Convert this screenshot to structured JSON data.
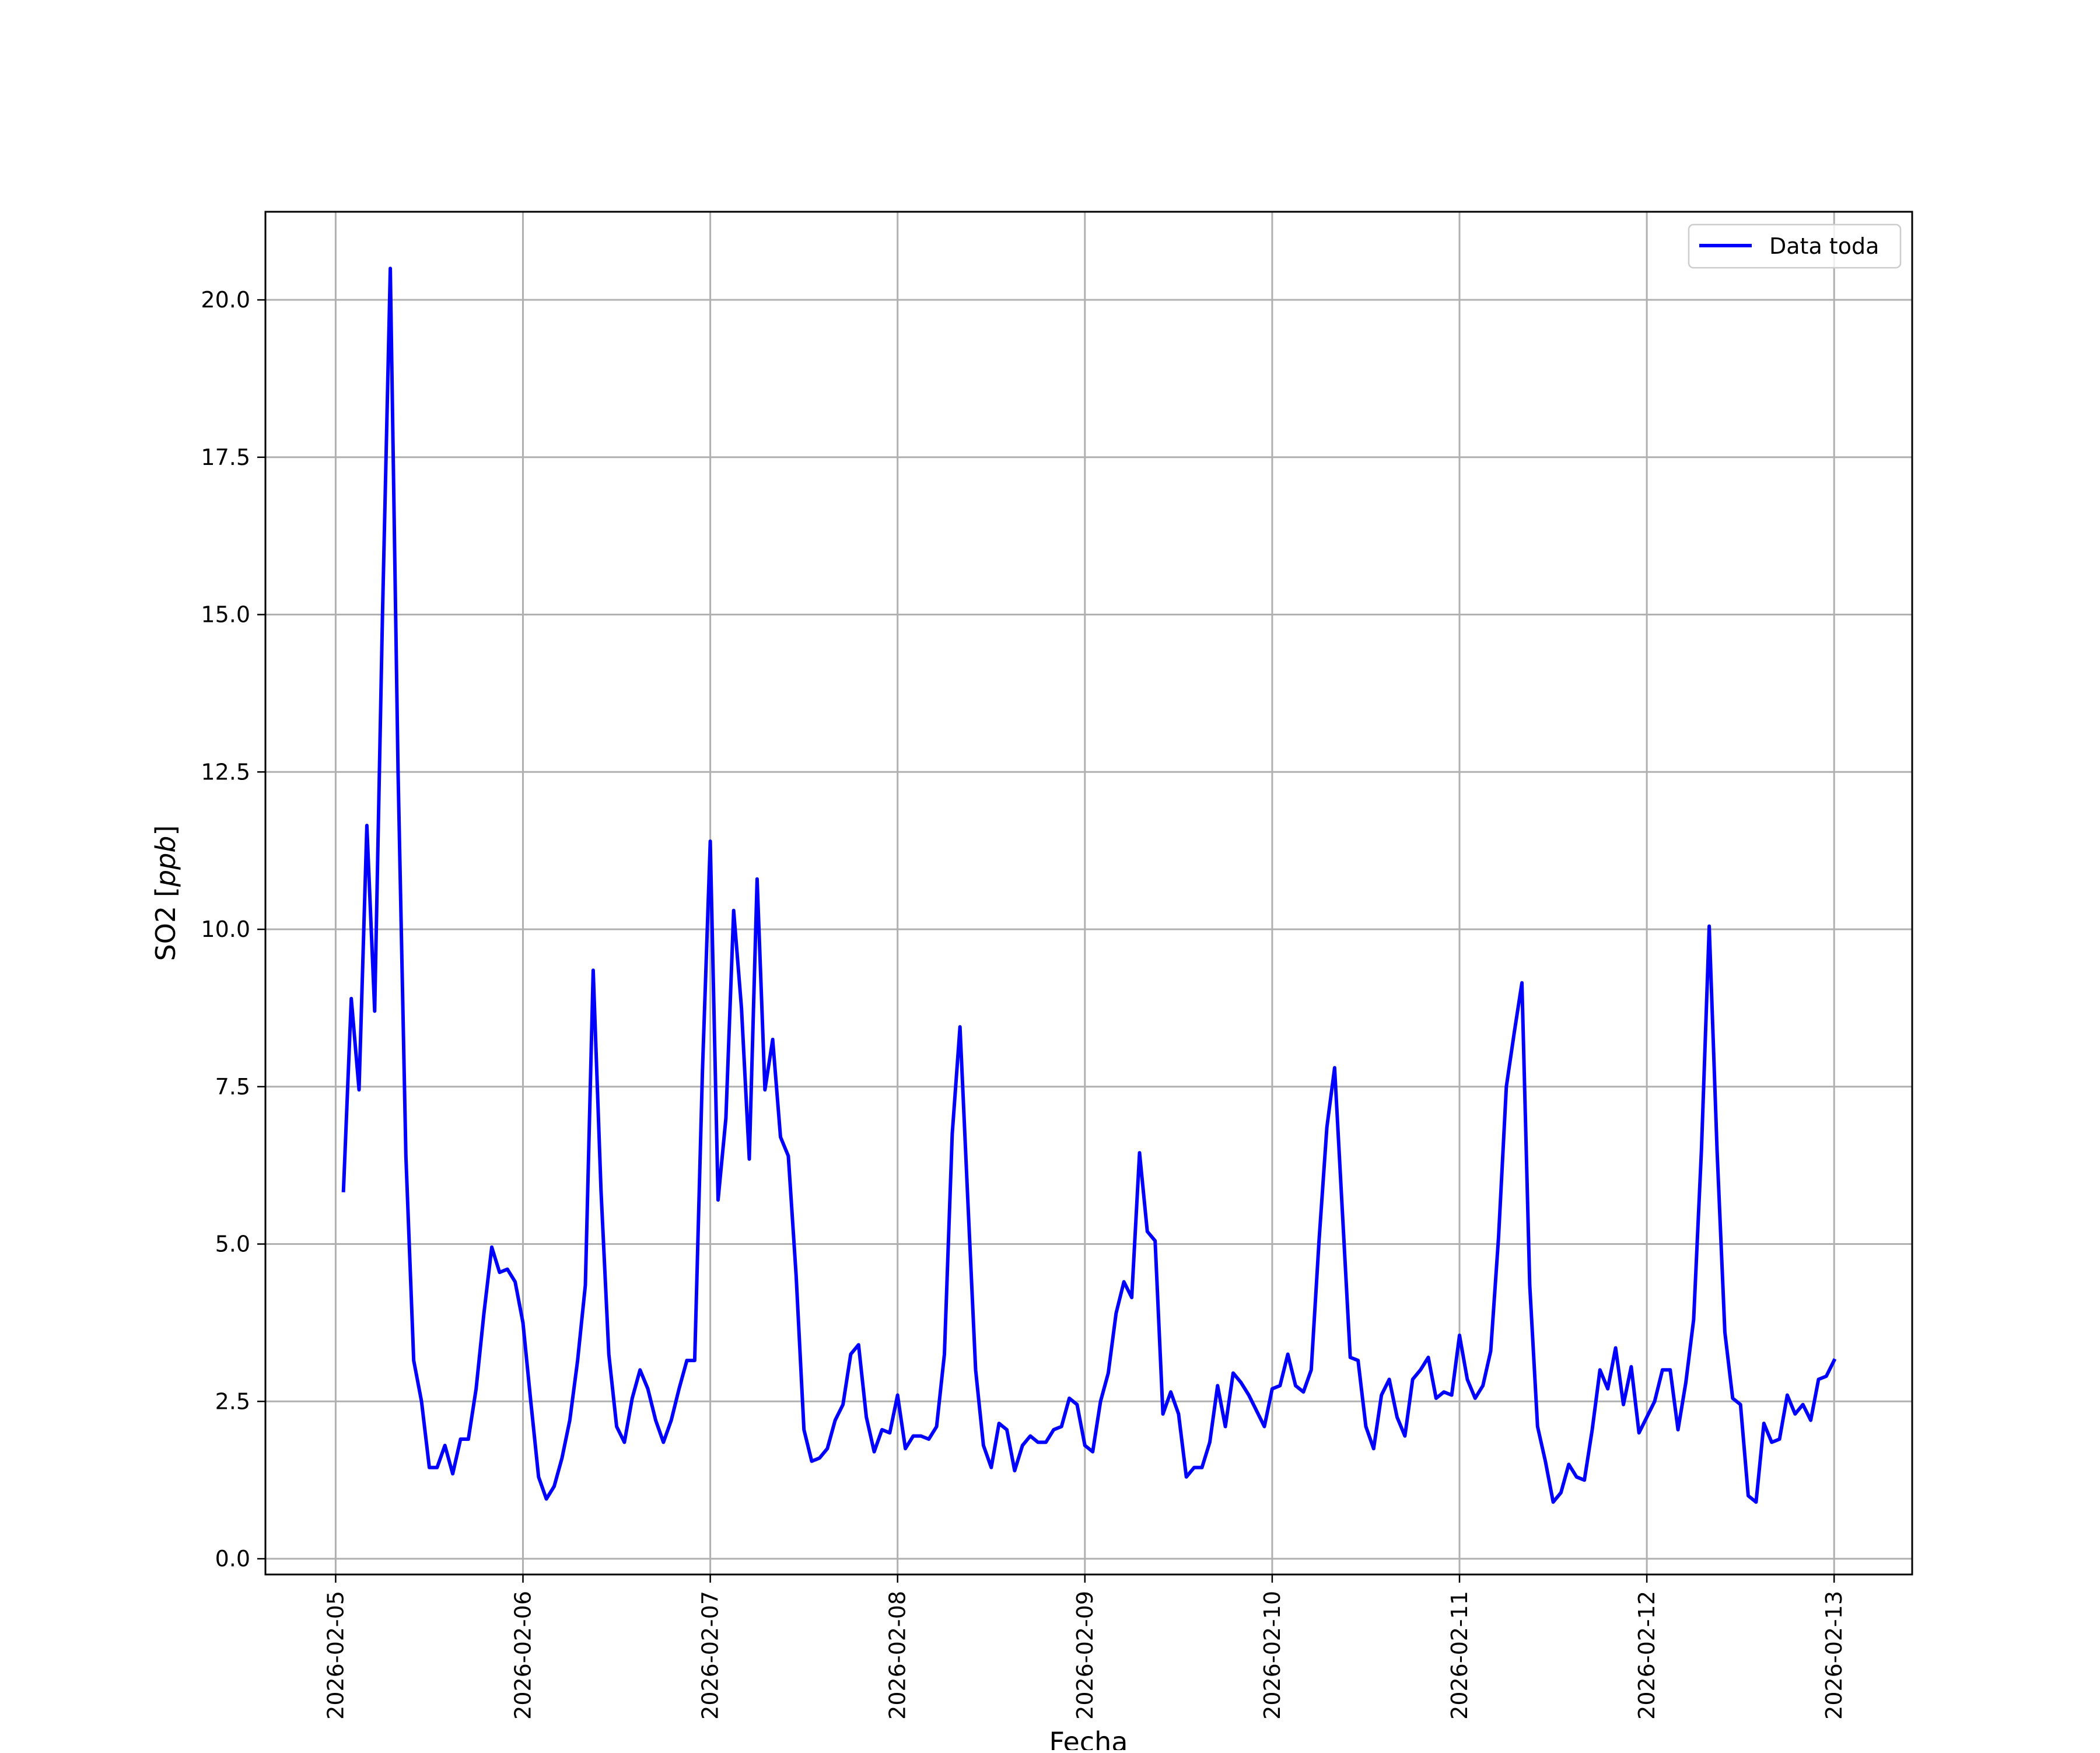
{
  "chart_data": {
    "type": "line",
    "title": "",
    "xlabel": "Fecha",
    "ylabel": "SO2 [ppb]",
    "ylabel_parts": {
      "plain": "SO2 ",
      "italic": "ppb"
    },
    "xlim": [
      "2026-02-04 15:00",
      "2026-02-13 10:00"
    ],
    "ylim": [
      -0.25,
      21.4
    ],
    "grid": true,
    "legend_position": "upper right",
    "x_tick_labels": [
      "2026-02-05",
      "2026-02-06",
      "2026-02-07",
      "2026-02-08",
      "2026-02-09",
      "2026-02-10",
      "2026-02-11",
      "2026-02-12",
      "2026-02-13"
    ],
    "y_tick_labels": [
      "0.0",
      "2.5",
      "5.0",
      "7.5",
      "10.0",
      "12.5",
      "15.0",
      "17.5",
      "20.0"
    ],
    "y_ticks": [
      0,
      2.5,
      5,
      7.5,
      10,
      12.5,
      15,
      17.5,
      20
    ],
    "x_start": "2026-02-05 01:00",
    "x_step_hours": 1,
    "series": [
      {
        "name": "Data toda",
        "color": "#0000ff",
        "values": [
          5.85,
          8.9,
          7.45,
          11.65,
          8.7,
          15.0,
          20.5,
          12.5,
          6.4,
          3.15,
          2.5,
          1.45,
          1.45,
          1.8,
          1.35,
          1.9,
          1.9,
          2.7,
          3.9,
          4.95,
          4.55,
          4.6,
          4.4,
          3.75,
          2.5,
          1.3,
          0.95,
          1.15,
          1.6,
          2.2,
          3.15,
          4.35,
          9.35,
          5.85,
          3.25,
          2.1,
          1.85,
          2.55,
          3.0,
          2.7,
          2.2,
          1.85,
          2.2,
          2.7,
          3.15,
          3.15,
          7.75,
          11.4,
          5.7,
          7.0,
          10.3,
          8.75,
          6.35,
          10.8,
          7.45,
          8.25,
          6.7,
          6.4,
          4.5,
          2.05,
          1.55,
          1.6,
          1.75,
          2.2,
          2.45,
          3.25,
          3.4,
          2.25,
          1.7,
          2.05,
          2.0,
          2.6,
          1.75,
          1.95,
          1.95,
          1.9,
          2.1,
          3.25,
          6.75,
          8.45,
          5.7,
          3.0,
          1.8,
          1.45,
          2.15,
          2.05,
          1.4,
          1.8,
          1.95,
          1.85,
          1.85,
          2.05,
          2.1,
          2.55,
          2.45,
          1.8,
          1.7,
          2.5,
          2.95,
          3.9,
          4.4,
          4.15,
          6.45,
          5.2,
          5.05,
          2.3,
          2.65,
          2.3,
          1.3,
          1.45,
          1.45,
          1.85,
          2.75,
          2.1,
          2.95,
          2.8,
          2.6,
          2.35,
          2.1,
          2.7,
          2.75,
          3.25,
          2.75,
          2.65,
          3.0,
          5.05,
          6.85,
          7.8,
          5.5,
          3.2,
          3.15,
          2.1,
          1.75,
          2.6,
          2.85,
          2.25,
          1.95,
          2.85,
          3.0,
          3.2,
          2.55,
          2.65,
          2.6,
          3.55,
          2.85,
          2.55,
          2.75,
          3.3,
          5.1,
          7.5,
          8.35,
          9.15,
          4.35,
          2.1,
          1.55,
          0.9,
          1.05,
          1.5,
          1.3,
          1.25,
          2.05,
          3.0,
          2.7,
          3.35,
          2.45,
          3.05,
          2.0,
          2.25,
          2.5,
          3.0,
          3.0,
          2.05,
          2.8,
          3.8,
          6.5,
          10.05,
          6.5,
          3.6,
          2.55,
          2.45,
          1.0,
          0.9,
          2.15,
          1.85,
          1.9,
          2.6,
          2.3,
          2.45,
          2.2,
          2.85,
          2.9,
          3.15
        ]
      }
    ]
  }
}
